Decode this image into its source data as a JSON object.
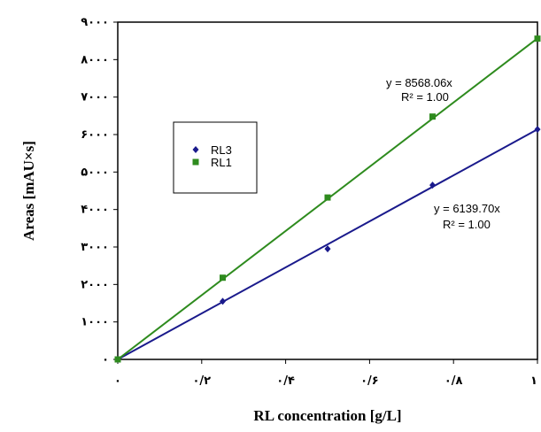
{
  "chart_data": {
    "type": "scatter",
    "xlabel": "RL concentration [g/L]",
    "ylabel": "Areas [mAU×s]",
    "xlim": [
      0,
      1
    ],
    "ylim": [
      0,
      9000
    ],
    "xticks": [
      0,
      0.2,
      0.4,
      0.6,
      0.8,
      1
    ],
    "xtick_labels": [
      "٠",
      "٠/٢",
      "٠/۴",
      "٠/۶",
      "٠/٨",
      "١"
    ],
    "yticks": [
      0,
      1000,
      2000,
      3000,
      4000,
      5000,
      6000,
      7000,
      8000,
      9000
    ],
    "ytick_labels": [
      "٠",
      "١٠٠٠",
      "٢٠٠٠",
      "٣٠٠٠",
      "۴٠٠٠",
      "۵٠٠٠",
      "۶٠٠٠",
      "٧٠٠٠",
      "٨٠٠٠",
      "٩٠٠٠"
    ],
    "grid": false,
    "legend_position": "upper-left",
    "series": [
      {
        "name": "RL3",
        "color": "#1a1a8c",
        "marker": "diamond",
        "x": [
          0,
          0.25,
          0.5,
          0.75,
          1.0
        ],
        "y": [
          0,
          1550,
          2950,
          4650,
          6140
        ],
        "trendline": {
          "slope": 6139.7,
          "equation": "y = 6139.70x",
          "r2": "R² = 1.00"
        }
      },
      {
        "name": "RL1",
        "color": "#2e8b1e",
        "marker": "square",
        "x": [
          0,
          0.25,
          0.5,
          0.75,
          1.0
        ],
        "y": [
          0,
          2180,
          4320,
          6480,
          8560
        ],
        "trendline": {
          "slope": 8568.06,
          "equation": "y = 8568.06x",
          "r2": "R² = 1.00"
        }
      }
    ]
  }
}
